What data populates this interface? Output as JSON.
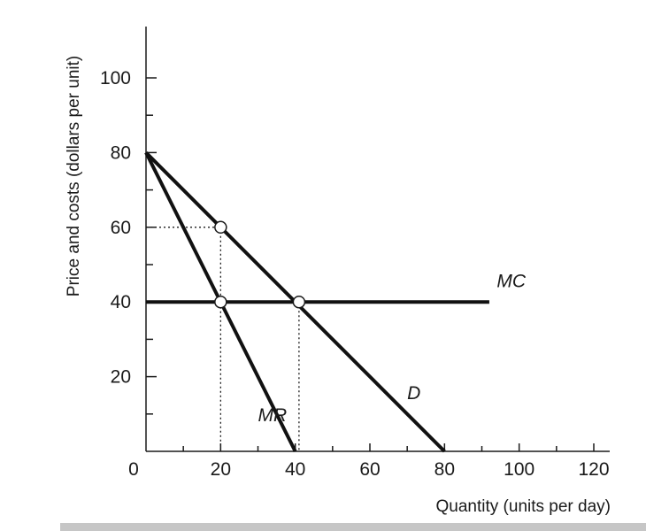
{
  "chart_data": {
    "type": "line",
    "title": "",
    "xlabel": "Quantity (units per day)",
    "ylabel": "Price and costs (dollars per unit)",
    "xlim": [
      0,
      120
    ],
    "ylim": [
      0,
      100
    ],
    "x_ticks": [
      0,
      20,
      40,
      60,
      80,
      100,
      120
    ],
    "x_tick_labels": [
      "0",
      "20",
      "40",
      "60",
      "80",
      "100",
      "120"
    ],
    "x_minor_step": 10,
    "y_ticks": [
      20,
      40,
      60,
      80,
      100
    ],
    "y_tick_labels": [
      "20",
      "40",
      "60",
      "80",
      "100"
    ],
    "y_minor_step": 10,
    "grid": false,
    "series": [
      {
        "name": "D",
        "label_at": [
          70,
          14
        ],
        "points": [
          [
            0,
            80
          ],
          [
            80,
            0
          ]
        ]
      },
      {
        "name": "MR",
        "label_at": [
          30,
          8
        ],
        "points": [
          [
            0,
            80
          ],
          [
            40,
            0
          ]
        ]
      },
      {
        "name": "MC",
        "label_at": [
          94,
          44
        ],
        "points": [
          [
            0,
            40
          ],
          [
            92,
            40
          ]
        ]
      }
    ],
    "markers": [
      {
        "x": 20,
        "y": 60
      },
      {
        "x": 20,
        "y": 40
      },
      {
        "x": 41,
        "y": 40
      }
    ],
    "guides": [
      {
        "from": [
          0,
          60
        ],
        "to": [
          20,
          60
        ]
      },
      {
        "from": [
          20,
          60
        ],
        "to": [
          20,
          0
        ]
      },
      {
        "from": [
          41,
          40
        ],
        "to": [
          41,
          0
        ]
      }
    ]
  }
}
